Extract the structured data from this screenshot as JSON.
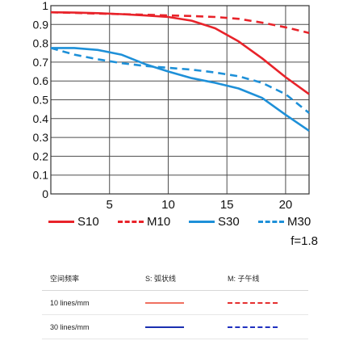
{
  "chart_data": {
    "type": "line",
    "title": "",
    "xlabel": "",
    "ylabel": "",
    "xlim": [
      0,
      22
    ],
    "ylim": [
      0,
      1
    ],
    "xticks": [
      5,
      10,
      15,
      20
    ],
    "yticks": [
      0,
      0.1,
      0.2,
      0.3,
      0.4,
      0.5,
      0.6,
      0.7,
      0.8,
      0.9,
      1
    ],
    "ytick_labels": [
      "0",
      "0.1",
      "0.2",
      "0.3",
      "0.4",
      "0.5",
      "0.6",
      "0.7",
      "0.8",
      "0.9",
      "1"
    ],
    "grid": true,
    "legend_position": "bottom",
    "series": [
      {
        "name": "S10",
        "color": "#e8232a",
        "dash": "solid",
        "x": [
          0,
          2,
          4,
          6,
          8,
          10,
          12,
          14,
          16,
          18,
          20,
          22
        ],
        "y": [
          0.965,
          0.963,
          0.96,
          0.955,
          0.948,
          0.94,
          0.92,
          0.88,
          0.81,
          0.72,
          0.62,
          0.53
        ]
      },
      {
        "name": "M10",
        "color": "#e8232a",
        "dash": "dashed",
        "x": [
          0,
          2,
          4,
          6,
          8,
          10,
          12,
          14,
          16,
          18,
          20,
          22
        ],
        "y": [
          0.965,
          0.962,
          0.958,
          0.955,
          0.952,
          0.948,
          0.945,
          0.94,
          0.93,
          0.91,
          0.885,
          0.855
        ]
      },
      {
        "name": "S30",
        "color": "#1e90d8",
        "dash": "solid",
        "x": [
          0,
          2,
          4,
          6,
          8,
          10,
          12,
          14,
          16,
          18,
          20,
          22
        ],
        "y": [
          0.775,
          0.775,
          0.765,
          0.74,
          0.69,
          0.65,
          0.615,
          0.59,
          0.56,
          0.51,
          0.42,
          0.335
        ]
      },
      {
        "name": "M30",
        "color": "#1e90d8",
        "dash": "dashed",
        "x": [
          0,
          2,
          4,
          6,
          8,
          10,
          12,
          14,
          16,
          18,
          20,
          22
        ],
        "y": [
          0.775,
          0.74,
          0.715,
          0.695,
          0.68,
          0.67,
          0.66,
          0.645,
          0.625,
          0.59,
          0.53,
          0.43
        ]
      }
    ]
  },
  "legend_items": [
    {
      "label": "S10",
      "color": "#e8232a",
      "style": "solid"
    },
    {
      "label": "M10",
      "color": "#e8232a",
      "style": "dashed"
    },
    {
      "label": "S30",
      "color": "#1e90d8",
      "style": "solid"
    },
    {
      "label": "M30",
      "color": "#1e90d8",
      "style": "dashed"
    }
  ],
  "aperture_label": "f=1.8",
  "table": {
    "headers": [
      "空间频率",
      "S: 弧状线",
      "M: 子午线"
    ],
    "rows": [
      {
        "label": "10 lines/mm",
        "s_color": "#f07060",
        "m_color": "#e53030"
      },
      {
        "label": "30 lines/mm",
        "s_color": "#1a2fb0",
        "m_color": "#2030c0"
      }
    ]
  }
}
